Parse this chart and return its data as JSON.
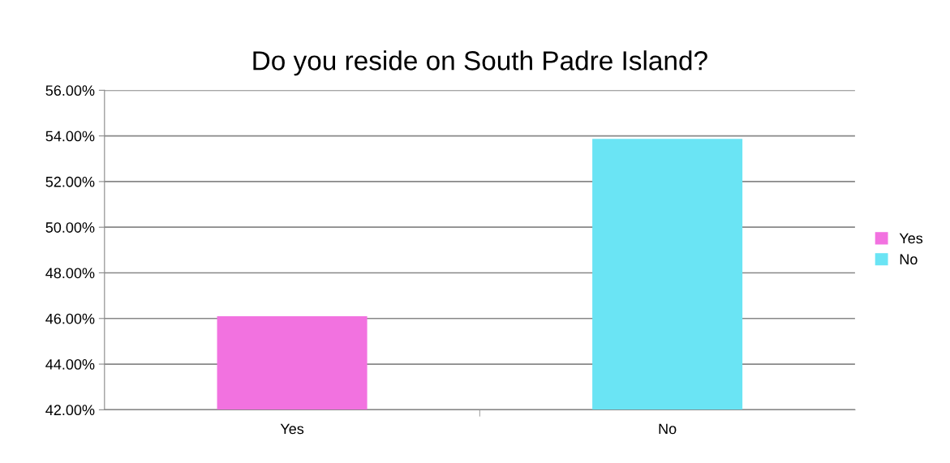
{
  "chart_data": {
    "type": "bar",
    "title": "Do you reside on South Padre Island?",
    "categories": [
      "Yes",
      "No"
    ],
    "series": [
      {
        "name": "Yes",
        "color": "#f272e0",
        "values": [
          46.1,
          null
        ]
      },
      {
        "name": "No",
        "color": "#6ae4f4",
        "values": [
          null,
          53.87
        ]
      }
    ],
    "ylim": [
      42,
      56
    ],
    "yticks": [
      {
        "value": 42,
        "label": "42.00%"
      },
      {
        "value": 44,
        "label": "44.00%"
      },
      {
        "value": 46,
        "label": "46.00%"
      },
      {
        "value": 48,
        "label": "48.00%"
      },
      {
        "value": 50,
        "label": "50.00%"
      },
      {
        "value": 52,
        "label": "52.00%"
      },
      {
        "value": 54,
        "label": "54.00%"
      },
      {
        "value": 56,
        "label": "56.00%"
      }
    ],
    "grid": "y",
    "legend": "right"
  }
}
